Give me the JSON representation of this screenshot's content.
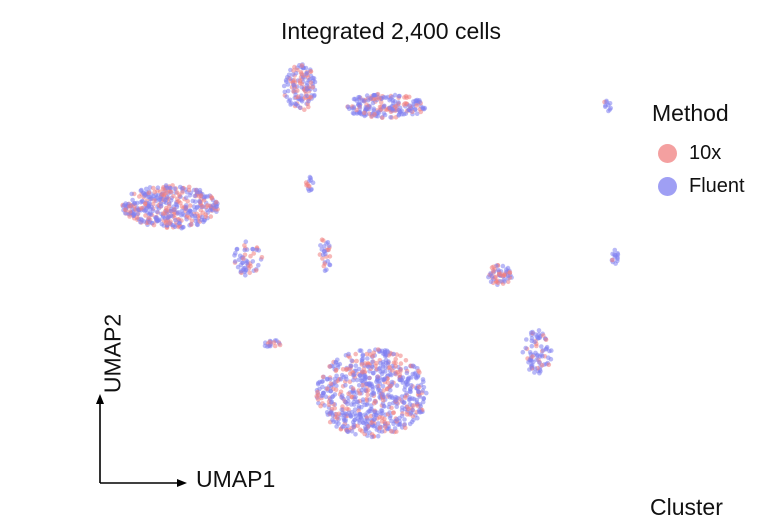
{
  "chart_data": {
    "type": "scatter",
    "title": "Integrated 2,400 cells",
    "xlabel": "UMAP1",
    "ylabel": "UMAP2",
    "legend": {
      "title": "Method",
      "placement": "right",
      "entries": [
        {
          "label": "10x",
          "color": "#f08080"
        },
        {
          "label": "Fluent",
          "color": "#7f7ff0"
        }
      ]
    },
    "series": [
      {
        "name": "10x",
        "color": "#f08080"
      },
      {
        "name": "Fluent",
        "color": "#7f7ff0"
      }
    ],
    "grid": false,
    "axes": "arrows-only"
  },
  "footer": {
    "text": "Cluster"
  }
}
